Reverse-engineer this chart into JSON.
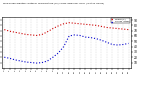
{
  "title": "Milwaukee Weather Outdoor Temperature (vs) THSW Index per Hour (Last 24 Hours)",
  "background_color": "#ffffff",
  "grid_color": "#aaaaaa",
  "hours": [
    0,
    1,
    2,
    3,
    4,
    5,
    6,
    7,
    8,
    9,
    10,
    11,
    12,
    13,
    14,
    15,
    16,
    17,
    18,
    19,
    20,
    21,
    22,
    23
  ],
  "temp": [
    72,
    69,
    67,
    65,
    63,
    62,
    61,
    63,
    68,
    74,
    79,
    83,
    85,
    84,
    83,
    82,
    81,
    80,
    78,
    76,
    75,
    74,
    73,
    72
  ],
  "thsw": [
    20,
    18,
    15,
    13,
    11,
    10,
    9,
    10,
    13,
    20,
    28,
    40,
    60,
    62,
    61,
    58,
    57,
    55,
    52,
    48,
    44,
    43,
    44,
    46
  ],
  "temp_color": "#cc0000",
  "thsw_color": "#0000cc",
  "ylim_min": 0,
  "ylim_max": 95,
  "ytick_values": [
    10,
    20,
    30,
    40,
    50,
    60,
    70,
    80,
    90
  ],
  "ytick_labels": [
    "10",
    "20",
    "30",
    "40",
    "50",
    "60",
    "70",
    "80",
    "90"
  ],
  "legend_temp": "Temp (F)",
  "legend_thsw": "THSW Index",
  "line_width": 0.8,
  "marker_size": 1.5
}
